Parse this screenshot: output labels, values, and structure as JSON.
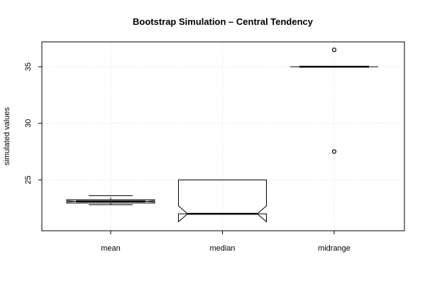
{
  "chart_data": {
    "type": "boxplot",
    "title": "Bootstrap Simulation – Central Tendency",
    "xlabel": "",
    "ylabel": "simulated values",
    "ylim": [
      20.5,
      37.2
    ],
    "yticks": [
      25,
      30,
      35
    ],
    "grid": true,
    "notched": true,
    "categories": [
      "mean",
      "median",
      "midrange"
    ],
    "boxes": [
      {
        "category": "mean",
        "whisker_low": 22.8,
        "q1": 22.95,
        "median": 23.1,
        "q3": 23.25,
        "whisker_high": 23.6,
        "notch_low": 23.05,
        "notch_high": 23.15,
        "outliers": []
      },
      {
        "category": "median",
        "whisker_low": 22.0,
        "q1": 22.0,
        "median": 22.0,
        "q3": 25.0,
        "whisker_high": 25.0,
        "notch_low": 21.3,
        "notch_high": 22.7,
        "outliers": []
      },
      {
        "category": "midrange",
        "whisker_low": 35.0,
        "q1": 35.0,
        "median": 35.0,
        "q3": 35.0,
        "whisker_high": 35.0,
        "notch_low": 35.0,
        "notch_high": 35.0,
        "outliers": [
          27.5,
          36.5
        ]
      }
    ]
  }
}
